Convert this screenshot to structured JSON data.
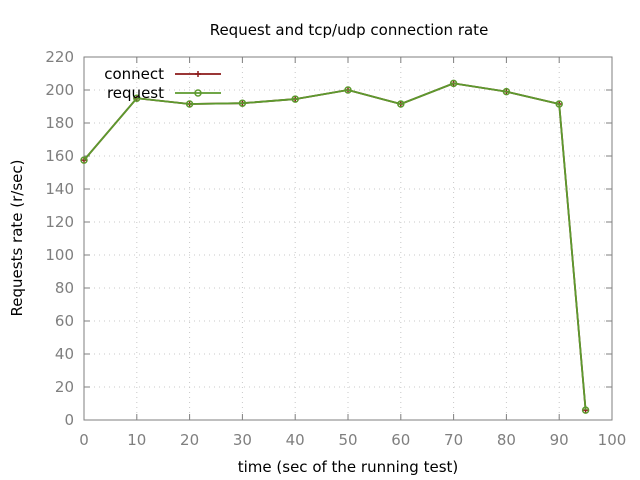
{
  "chart_data": {
    "type": "line",
    "title": "Request and tcp/udp connection rate",
    "xlabel": "time (sec of the running test)",
    "ylabel": "Requests rate (r/sec)",
    "xlim": [
      0,
      100
    ],
    "ylim": [
      0,
      220
    ],
    "x_ticks": [
      0,
      10,
      20,
      30,
      40,
      50,
      60,
      70,
      80,
      90,
      100
    ],
    "y_ticks": [
      0,
      20,
      40,
      60,
      80,
      100,
      120,
      140,
      160,
      180,
      200,
      220
    ],
    "grid": true,
    "legend_position": "top-left",
    "series": [
      {
        "name": "connect",
        "color": "#8b1a1a",
        "marker": "plus",
        "x": [
          0,
          10,
          20,
          30,
          40,
          50,
          60,
          70,
          80,
          90,
          95
        ],
        "y": [
          157.5,
          195,
          191.5,
          192,
          194.5,
          200,
          191.5,
          204,
          199,
          191.5,
          6
        ]
      },
      {
        "name": "request",
        "color": "#5c9a2e",
        "marker": "circle",
        "x": [
          0,
          10,
          20,
          30,
          40,
          50,
          60,
          70,
          80,
          90,
          95
        ],
        "y": [
          157.5,
          195,
          191.5,
          192,
          194.5,
          200,
          191.5,
          204,
          199,
          191.5,
          6
        ]
      }
    ]
  }
}
